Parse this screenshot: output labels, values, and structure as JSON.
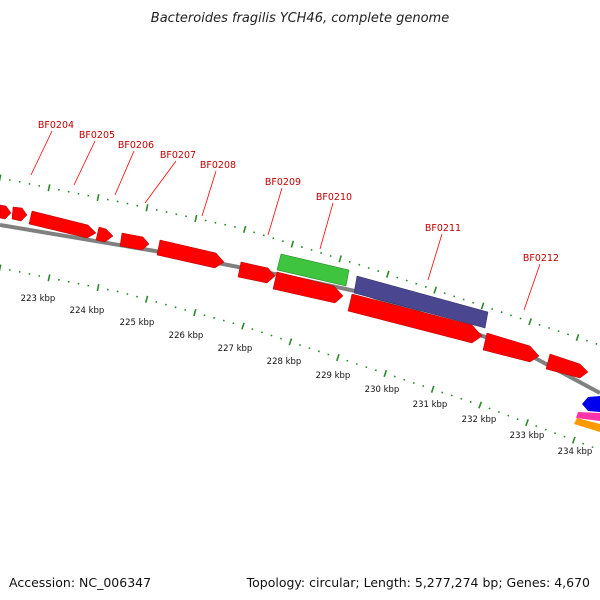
{
  "title": "Bacteroides fragilis YCH46, complete genome",
  "footer": {
    "accession": "Accession: NC_006347",
    "summary": "Topology: circular; Length: 5,277,274 bp; Genes: 4,670"
  },
  "colors": {
    "cds": "#ff0000",
    "green_feature": "#3ec43e",
    "purple_feature": "#4b4690",
    "backbone": "#808080",
    "ticks": "#2a8a2a",
    "labels": "#c00000",
    "blue_feature": "#0000ee",
    "magenta_feature": "#ff33aa",
    "orange_feature": "#ff9900"
  },
  "gene_labels": [
    "BF0204",
    "BF0205",
    "BF0206",
    "BF0207",
    "BF0208",
    "BF0209",
    "BF0210",
    "BF0211",
    "BF0212"
  ],
  "kbp_labels": [
    "223 kbp",
    "224 kbp",
    "225 kbp",
    "226 kbp",
    "227 kbp",
    "228 kbp",
    "229 kbp",
    "230 kbp",
    "231 kbp",
    "232 kbp",
    "233 kbp",
    "234 kbp"
  ]
}
